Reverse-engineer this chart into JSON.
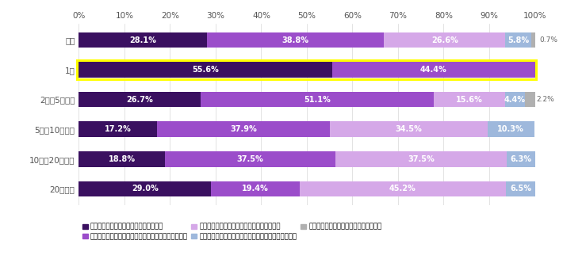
{
  "categories": [
    "全体",
    "1人",
    "2人＇5人未満",
    "5人＇10人未満",
    "10人＇20人未満",
    "20人以上"
  ],
  "series": [
    {
      "name": "予防法務としての業務しか行っていない",
      "color": "#3a1060",
      "values": [
        28.1,
        55.6,
        26.7,
        17.2,
        18.8,
        29.0
      ]
    },
    {
      "name": "ほとんど予防法務だが、戦略法務としての業務もある",
      "color": "#9b4dca",
      "values": [
        38.8,
        44.4,
        51.1,
        37.9,
        37.5,
        19.4
      ]
    },
    {
      "name": "予防法務と戦略法務は同じくらいの業務割合",
      "color": "#d5a8e8",
      "values": [
        26.6,
        0.0,
        15.6,
        34.5,
        37.5,
        45.2
      ]
    },
    {
      "name": "ほとんど戦略法務だが、予防法務としての業務もある",
      "color": "#9eb8dc",
      "values": [
        5.8,
        0.0,
        4.4,
        10.3,
        6.3,
        6.5
      ]
    },
    {
      "name": "戦略法務としての業務しか行っていない",
      "color": "#b0b0b0",
      "values": [
        0.7,
        0.0,
        2.2,
        0.0,
        0.0,
        0.0
      ]
    }
  ],
  "small_labels": {
    "0.7": [
      0,
      4
    ],
    "2.2": [
      2,
      4
    ]
  },
  "highlight_row": 1,
  "highlight_color": "#ffff00",
  "background_color": "#ffffff",
  "bar_height": 0.52,
  "fontsize_label": 7.0,
  "fontsize_tick": 7.5,
  "fontsize_legend": 6.2
}
